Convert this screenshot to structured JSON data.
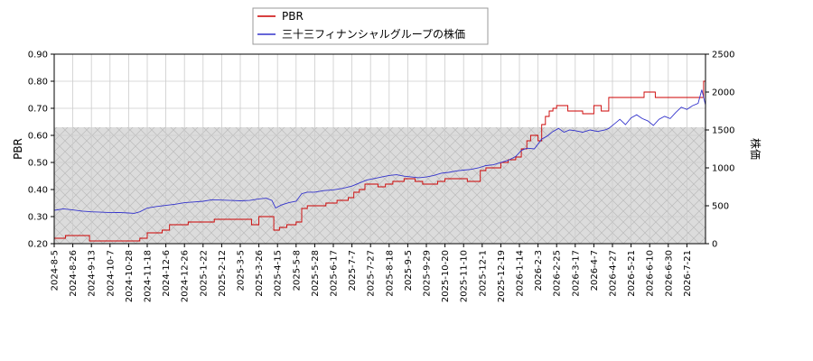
{
  "chart_data": {
    "type": "line",
    "title": "",
    "legend": {
      "placement": "top-center",
      "entries": [
        {
          "name": "PBR",
          "color": "#cc0000"
        },
        {
          "name": "三十三フィナンシャルグループの株価",
          "color": "#3333cc"
        }
      ]
    },
    "y_left": {
      "label": "PBR",
      "lim": [
        0.2,
        0.9
      ],
      "ticks": [
        "0.20",
        "0.30",
        "0.40",
        "0.50",
        "0.60",
        "0.70",
        "0.80",
        "0.90"
      ]
    },
    "y_right": {
      "label": "株価",
      "lim": [
        0,
        2500
      ],
      "ticks": [
        "0",
        "500",
        "1000",
        "1500",
        "2000",
        "2500"
      ]
    },
    "x_ticks": [
      "2024-8-5",
      "2024-8-26",
      "2024-9-13",
      "2024-10-7",
      "2024-10-28",
      "2024-11-18",
      "2024-12-6",
      "2024-12-26",
      "2025-1-22",
      "2025-2-12",
      "2025-3-5",
      "2025-3-26",
      "2025-4-15",
      "2025-5-8",
      "2025-5-28",
      "2025-6-17",
      "2025-7-7",
      "2025-7-27",
      "2025-8-18",
      "2025-9-5",
      "2025-9-29",
      "2025-10-20",
      "2025-11-10",
      "2025-12-1",
      "2025-12-19",
      "2026-1-14",
      "2026-2-3",
      "2026-2-25",
      "2026-3-17",
      "2026-4-7",
      "2026-4-27",
      "2026-5-21",
      "2026-6-10",
      "2026-6-30",
      "2026-7-21"
    ],
    "hatch_band": {
      "y_from": 0.2,
      "y_to": 0.63
    },
    "grid": true,
    "series": [
      {
        "name": "PBR",
        "axis": "left",
        "color": "#cc0000",
        "points": [
          [
            0,
            0.22
          ],
          [
            0.6,
            0.23
          ],
          [
            1.8,
            0.23
          ],
          [
            1.9,
            0.21
          ],
          [
            4.3,
            0.21
          ],
          [
            4.6,
            0.22
          ],
          [
            5.0,
            0.24
          ],
          [
            5.5,
            0.24
          ],
          [
            5.8,
            0.25
          ],
          [
            6.2,
            0.27
          ],
          [
            6.8,
            0.27
          ],
          [
            7.2,
            0.28
          ],
          [
            8.2,
            0.28
          ],
          [
            8.6,
            0.29
          ],
          [
            10.4,
            0.29
          ],
          [
            10.6,
            0.27
          ],
          [
            10.8,
            0.27
          ],
          [
            11.0,
            0.3
          ],
          [
            11.6,
            0.3
          ],
          [
            11.8,
            0.25
          ],
          [
            12.1,
            0.26
          ],
          [
            12.5,
            0.27
          ],
          [
            13.0,
            0.28
          ],
          [
            13.3,
            0.33
          ],
          [
            13.6,
            0.34
          ],
          [
            14.3,
            0.34
          ],
          [
            14.6,
            0.35
          ],
          [
            14.9,
            0.35
          ],
          [
            15.2,
            0.36
          ],
          [
            15.8,
            0.37
          ],
          [
            16.1,
            0.39
          ],
          [
            16.4,
            0.4
          ],
          [
            16.7,
            0.42
          ],
          [
            17.0,
            0.42
          ],
          [
            17.4,
            0.41
          ],
          [
            17.8,
            0.42
          ],
          [
            18.2,
            0.43
          ],
          [
            18.5,
            0.43
          ],
          [
            18.8,
            0.44
          ],
          [
            19.1,
            0.44
          ],
          [
            19.4,
            0.43
          ],
          [
            19.8,
            0.42
          ],
          [
            20.2,
            0.42
          ],
          [
            20.6,
            0.43
          ],
          [
            21.0,
            0.44
          ],
          [
            21.4,
            0.44
          ],
          [
            21.8,
            0.44
          ],
          [
            22.2,
            0.43
          ],
          [
            22.6,
            0.43
          ],
          [
            22.9,
            0.47
          ],
          [
            23.2,
            0.48
          ],
          [
            23.6,
            0.48
          ],
          [
            24.0,
            0.5
          ],
          [
            24.4,
            0.51
          ],
          [
            24.8,
            0.52
          ],
          [
            25.1,
            0.55
          ],
          [
            25.4,
            0.58
          ],
          [
            25.6,
            0.6
          ],
          [
            25.8,
            0.6
          ],
          [
            26.0,
            0.58
          ],
          [
            26.2,
            0.64
          ],
          [
            26.4,
            0.67
          ],
          [
            26.6,
            0.69
          ],
          [
            26.8,
            0.7
          ],
          [
            27.0,
            0.71
          ],
          [
            27.4,
            0.71
          ],
          [
            27.6,
            0.69
          ],
          [
            28.0,
            0.69
          ],
          [
            28.4,
            0.68
          ],
          [
            28.8,
            0.68
          ],
          [
            29.0,
            0.71
          ],
          [
            29.2,
            0.71
          ],
          [
            29.4,
            0.69
          ],
          [
            29.7,
            0.69
          ],
          [
            29.8,
            0.74
          ],
          [
            30.4,
            0.74
          ],
          [
            31.0,
            0.74
          ],
          [
            31.4,
            0.74
          ],
          [
            31.7,
            0.76
          ],
          [
            32.0,
            0.76
          ],
          [
            32.3,
            0.74
          ],
          [
            33.0,
            0.74
          ],
          [
            34.0,
            0.74
          ],
          [
            34.5,
            0.74
          ],
          [
            34.8,
            0.74
          ],
          [
            34.9,
            0.8
          ],
          [
            35.0,
            0.85
          ]
        ]
      },
      {
        "name": "三十三フィナンシャルグループの株価",
        "axis": "right",
        "color": "#3333cc",
        "points": [
          [
            0,
            440
          ],
          [
            0.5,
            460
          ],
          [
            1.0,
            445
          ],
          [
            1.5,
            430
          ],
          [
            2.0,
            420
          ],
          [
            2.5,
            415
          ],
          [
            3.0,
            410
          ],
          [
            3.5,
            412
          ],
          [
            4.0,
            405
          ],
          [
            4.3,
            400
          ],
          [
            4.6,
            420
          ],
          [
            5.0,
            470
          ],
          [
            5.5,
            490
          ],
          [
            6.0,
            505
          ],
          [
            6.5,
            520
          ],
          [
            7.0,
            540
          ],
          [
            7.5,
            550
          ],
          [
            8.0,
            560
          ],
          [
            8.5,
            580
          ],
          [
            9.0,
            575
          ],
          [
            9.5,
            570
          ],
          [
            10.0,
            565
          ],
          [
            10.5,
            570
          ],
          [
            11.0,
            590
          ],
          [
            11.4,
            600
          ],
          [
            11.7,
            570
          ],
          [
            11.9,
            470
          ],
          [
            12.2,
            510
          ],
          [
            12.6,
            540
          ],
          [
            13.0,
            560
          ],
          [
            13.3,
            660
          ],
          [
            13.6,
            680
          ],
          [
            14.0,
            680
          ],
          [
            14.5,
            700
          ],
          [
            15.0,
            710
          ],
          [
            15.5,
            730
          ],
          [
            16.0,
            760
          ],
          [
            16.4,
            800
          ],
          [
            16.8,
            840
          ],
          [
            17.2,
            860
          ],
          [
            17.6,
            880
          ],
          [
            18.0,
            900
          ],
          [
            18.4,
            910
          ],
          [
            18.8,
            890
          ],
          [
            19.2,
            880
          ],
          [
            19.6,
            870
          ],
          [
            20.0,
            880
          ],
          [
            20.4,
            900
          ],
          [
            20.8,
            930
          ],
          [
            21.2,
            940
          ],
          [
            21.6,
            960
          ],
          [
            22.0,
            970
          ],
          [
            22.4,
            980
          ],
          [
            22.8,
            1000
          ],
          [
            23.2,
            1030
          ],
          [
            23.6,
            1040
          ],
          [
            24.0,
            1070
          ],
          [
            24.4,
            1100
          ],
          [
            24.8,
            1150
          ],
          [
            25.1,
            1230
          ],
          [
            25.4,
            1260
          ],
          [
            25.8,
            1250
          ],
          [
            26.2,
            1380
          ],
          [
            26.5,
            1420
          ],
          [
            26.8,
            1480
          ],
          [
            27.1,
            1520
          ],
          [
            27.4,
            1470
          ],
          [
            27.7,
            1500
          ],
          [
            28.0,
            1490
          ],
          [
            28.4,
            1470
          ],
          [
            28.8,
            1500
          ],
          [
            29.2,
            1480
          ],
          [
            29.6,
            1500
          ],
          [
            29.8,
            1520
          ],
          [
            30.1,
            1580
          ],
          [
            30.4,
            1640
          ],
          [
            30.7,
            1570
          ],
          [
            31.0,
            1660
          ],
          [
            31.3,
            1700
          ],
          [
            31.6,
            1650
          ],
          [
            31.9,
            1620
          ],
          [
            32.2,
            1560
          ],
          [
            32.5,
            1640
          ],
          [
            32.8,
            1680
          ],
          [
            33.1,
            1650
          ],
          [
            33.4,
            1730
          ],
          [
            33.7,
            1800
          ],
          [
            34.0,
            1770
          ],
          [
            34.3,
            1820
          ],
          [
            34.6,
            1850
          ],
          [
            34.8,
            2030
          ],
          [
            35.0,
            1830
          ]
        ]
      }
    ]
  }
}
